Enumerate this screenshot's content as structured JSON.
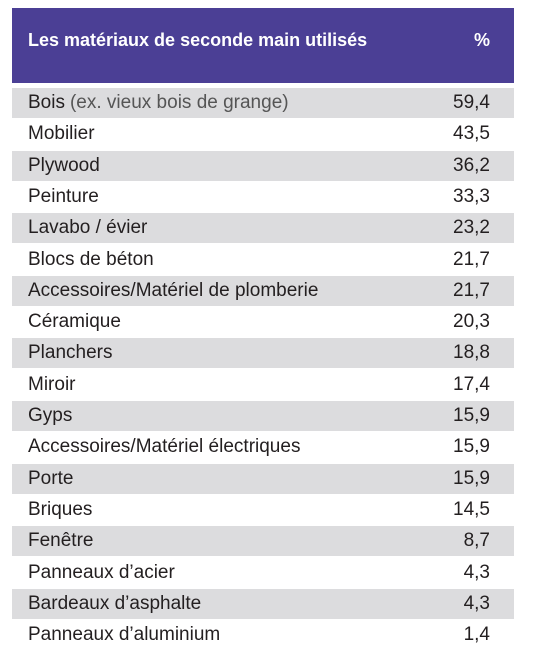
{
  "table": {
    "header": [
      "Les matériaux de seconde main utilisés",
      "%"
    ],
    "rows": [
      {
        "label": "Bois",
        "note": "(ex. vieux bois de grange)",
        "value": "59,4"
      },
      {
        "label": "Mobilier",
        "value": "43,5"
      },
      {
        "label": "Plywood",
        "value": "36,2"
      },
      {
        "label": "Peinture",
        "value": "33,3"
      },
      {
        "label": "Lavabo / évier",
        "value": "23,2"
      },
      {
        "label": "Blocs de béton",
        "value": "21,7"
      },
      {
        "label": "Accessoires/Matériel de plomberie",
        "value": "21,7"
      },
      {
        "label": "Céramique",
        "value": "20,3"
      },
      {
        "label": "Planchers",
        "value": "18,8"
      },
      {
        "label": "Miroir",
        "value": "17,4"
      },
      {
        "label": "Gyps",
        "value": "15,9"
      },
      {
        "label": "Accessoires/Matériel électriques",
        "value": "15,9"
      },
      {
        "label": "Porte",
        "value": "15,9"
      },
      {
        "label": "Briques",
        "value": "14,5"
      },
      {
        "label": "Fenêtre",
        "value": "8,7"
      },
      {
        "label": "Panneaux d’acier",
        "value": "4,3"
      },
      {
        "label": "Bardeaux d’asphalte",
        "value": "4,3"
      },
      {
        "label": "Panneaux d’aluminium",
        "value": "1,4"
      }
    ]
  }
}
